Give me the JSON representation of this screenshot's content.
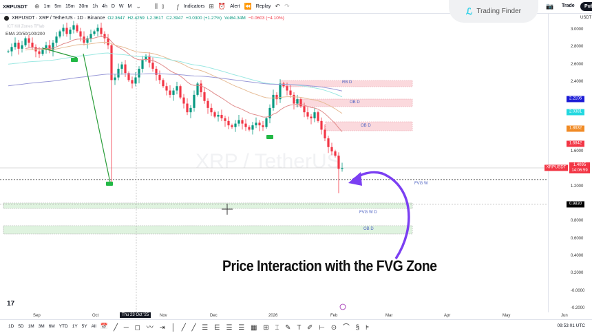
{
  "toolbar": {
    "symbol": "XRPUSDT",
    "intervals": [
      "1m",
      "5m",
      "15m",
      "30m",
      "1h",
      "4h",
      "D",
      "W",
      "M"
    ],
    "indicators": "Indicators",
    "alert": "Alert",
    "replay": "Replay",
    "trade": "Trade",
    "publish": "Pub"
  },
  "logo": {
    "text": "Trading Finder"
  },
  "legend": {
    "title": "XRPUSDT · XRP / TetherUS · 1D · Binance",
    "open": "O2.3647",
    "high": "H2.4259",
    "low": "L2.3617",
    "close": "C2.3947",
    "change": "+0.0300 (+1.27%)",
    "vol": "Vol84.34M",
    "vol_change": "−0.0603 (−4.10%)",
    "indicator1": "ICT Kill Zones TFlab",
    "indicator2": "EMA 20/50/100/200"
  },
  "watermark": "XRP / TetherUS",
  "price_axis": {
    "currency": "USDT",
    "ticks": [
      "3.0000",
      "2.8000",
      "2.6000",
      "2.4000",
      "1.6000",
      "1.2000",
      "0.8000",
      "0.6000",
      "0.4000",
      "0.2000",
      "-0.0000",
      "-0.2000"
    ],
    "labels": [
      {
        "text": "2.2106",
        "color": "#1a1ad6"
      },
      {
        "text": "2.0381",
        "color": "#22d8e0"
      },
      {
        "text": "1.8632",
        "color": "#f08a24"
      },
      {
        "text": "1.6842",
        "color": "#f23645"
      },
      {
        "text": "0.9830",
        "color": "#000000"
      }
    ],
    "current": {
      "symbol": "XRPUSDT",
      "price": "1.4095",
      "countdown": "14:06:59",
      "color": "#f23645"
    }
  },
  "zones": {
    "rb": "RB D",
    "ob1": "OB D",
    "ob2": "OB D",
    "fvg_w": "FVG W",
    "fvg_wd": "FVG W D",
    "ob_green": "OB D"
  },
  "caption": "Price Interaction with the FVG Zone",
  "time_axis": {
    "labels": [
      "Sep",
      "Oct",
      "Nov",
      "Dec",
      "2026",
      "Feb",
      "Mar",
      "Apr",
      "May",
      "Jun"
    ],
    "crosshair_date": "Thu 23 Oct '25"
  },
  "bottombar": {
    "ranges": [
      "1D",
      "5D",
      "1M",
      "3M",
      "6M",
      "YTD",
      "1Y",
      "5Y",
      "All"
    ],
    "clock": "09:53:01 UTC"
  },
  "candles_close": [
    2.75,
    2.8,
    2.85,
    2.78,
    2.82,
    2.9,
    2.85,
    2.8,
    2.75,
    2.72,
    2.78,
    2.82,
    2.76,
    2.85,
    2.92,
    2.98,
    3.02,
    2.95,
    3.0,
    3.05,
    2.98,
    2.92,
    2.85,
    2.9,
    2.95,
    2.98,
    3.02,
    2.95,
    2.9,
    2.82,
    2.42,
    2.45,
    2.55,
    2.6,
    2.5,
    2.42,
    2.38,
    2.45,
    2.55,
    2.65,
    2.7,
    2.62,
    2.55,
    2.48,
    2.42,
    2.35,
    2.3,
    2.25,
    2.3,
    2.35,
    2.22,
    2.15,
    2.05,
    2.1,
    2.25,
    2.38,
    2.28,
    2.18,
    2.1,
    2.05,
    2.0,
    2.02,
    1.98,
    1.95,
    1.9,
    1.88,
    1.92,
    1.96,
    1.92,
    1.88,
    1.85,
    1.9,
    1.93,
    1.9,
    1.88,
    1.98,
    2.1,
    2.25,
    2.2,
    2.38,
    2.35,
    2.3,
    2.25,
    2.15,
    2.2,
    2.12,
    2.05,
    2.0,
    1.98,
    2.05,
    1.95,
    1.85,
    1.75,
    1.65,
    1.6,
    1.55,
    1.4,
    1.41
  ],
  "colors": {
    "up": "#089981",
    "down": "#f23645",
    "ema20": "#e08a8a",
    "ema50": "#e6bc96",
    "ema100": "#9be8e2",
    "ema200": "#9a9ad8",
    "arrow": "#7b3ff2",
    "bear_zone": "#fbd9dd",
    "bull_zone": "#dff3df"
  }
}
